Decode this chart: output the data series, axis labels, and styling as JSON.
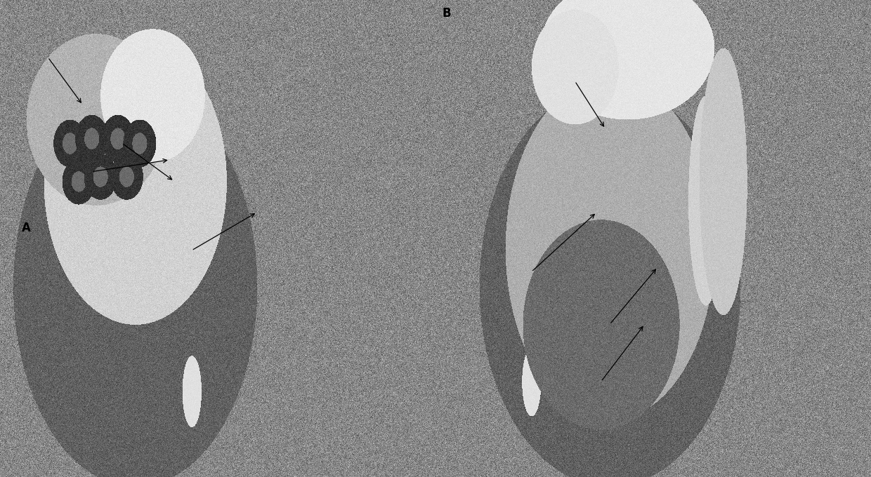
{
  "figure_width": 12.4,
  "figure_height": 6.8,
  "dpi": 100,
  "bg_color": "#888888",
  "panel_A": {
    "label": "A",
    "label_fontsize": 12,
    "label_color": "black"
  },
  "panel_B": {
    "label": "B",
    "label_fontsize": 12,
    "label_color": "black"
  },
  "noise_seed": 42,
  "noise_scale": 0.12
}
